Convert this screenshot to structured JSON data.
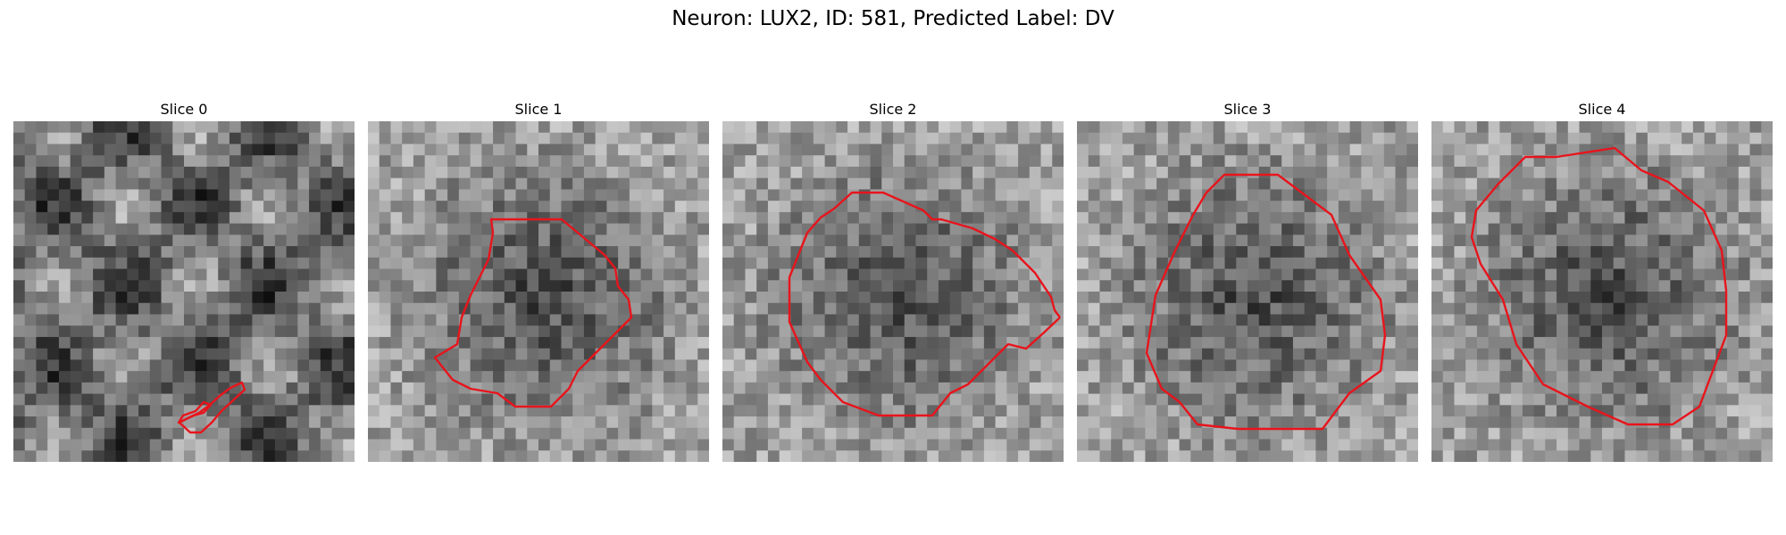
{
  "figure": {
    "title": "Neuron: LUX2, ID: 581, Predicted Label: DV",
    "contour_color": "#e8141c",
    "grid_size": 30
  },
  "panels": [
    {
      "title": "Slice 0",
      "seed": 11
    },
    {
      "title": "Slice 1",
      "seed": 23
    },
    {
      "title": "Slice 2",
      "seed": 37
    },
    {
      "title": "Slice 3",
      "seed": 41
    },
    {
      "title": "Slice 4",
      "seed": 59
    }
  ]
}
